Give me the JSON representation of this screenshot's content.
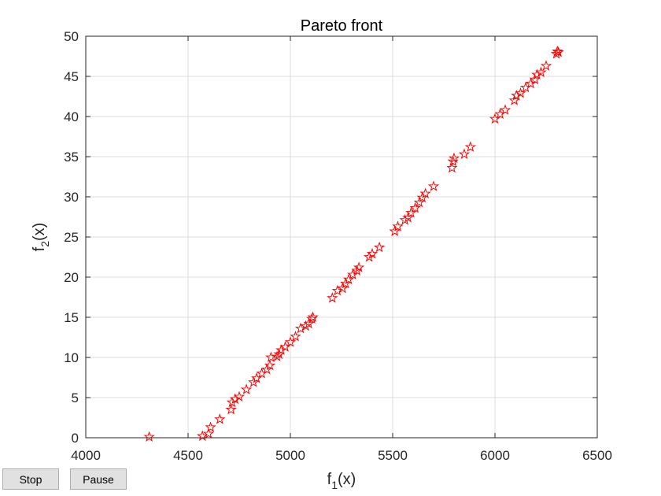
{
  "chart_data": {
    "type": "scatter",
    "title": "Pareto front",
    "xlabel": {
      "base": "f",
      "sub": "1",
      "rest": "(x)"
    },
    "ylabel": {
      "base": "f",
      "sub": "2",
      "rest": "(x)"
    },
    "xlim": [
      4000,
      6500
    ],
    "ylim": [
      0,
      50
    ],
    "xticks": [
      4000,
      4500,
      5000,
      5500,
      6000,
      6500
    ],
    "yticks": [
      0,
      5,
      10,
      15,
      20,
      25,
      30,
      35,
      40,
      45,
      50
    ],
    "grid": true,
    "marker": "pentagram",
    "marker_color": "#ff0000",
    "points": [
      [
        4310,
        0.1
      ],
      [
        4570,
        0.2
      ],
      [
        4600,
        0.5
      ],
      [
        4610,
        1.3
      ],
      [
        4655,
        2.3
      ],
      [
        4710,
        3.5
      ],
      [
        4715,
        4.4
      ],
      [
        4730,
        4.8
      ],
      [
        4750,
        5.1
      ],
      [
        4785,
        6.0
      ],
      [
        4820,
        6.9
      ],
      [
        4835,
        7.4
      ],
      [
        4860,
        8.0
      ],
      [
        4885,
        8.5
      ],
      [
        4900,
        9.0
      ],
      [
        4905,
        10.0
      ],
      [
        4935,
        10.1
      ],
      [
        4945,
        10.4
      ],
      [
        4955,
        10.9
      ],
      [
        4975,
        11.3
      ],
      [
        5000,
        11.9
      ],
      [
        5025,
        12.6
      ],
      [
        5050,
        13.6
      ],
      [
        5075,
        13.9
      ],
      [
        5090,
        14.2
      ],
      [
        5105,
        14.8
      ],
      [
        5110,
        15.0
      ],
      [
        5205,
        17.4
      ],
      [
        5230,
        18.3
      ],
      [
        5255,
        18.6
      ],
      [
        5270,
        19.2
      ],
      [
        5285,
        19.7
      ],
      [
        5305,
        20.3
      ],
      [
        5325,
        20.8
      ],
      [
        5335,
        21.2
      ],
      [
        5385,
        22.5
      ],
      [
        5400,
        22.9
      ],
      [
        5435,
        23.7
      ],
      [
        5510,
        25.7
      ],
      [
        5525,
        26.3
      ],
      [
        5560,
        27.1
      ],
      [
        5575,
        27.4
      ],
      [
        5590,
        28.0
      ],
      [
        5610,
        28.6
      ],
      [
        5630,
        29.3
      ],
      [
        5645,
        29.9
      ],
      [
        5660,
        30.4
      ],
      [
        5700,
        31.3
      ],
      [
        5790,
        33.6
      ],
      [
        5795,
        34.4
      ],
      [
        5800,
        34.8
      ],
      [
        5850,
        35.3
      ],
      [
        5880,
        36.2
      ],
      [
        6000,
        39.7
      ],
      [
        6025,
        40.3
      ],
      [
        6050,
        40.8
      ],
      [
        6095,
        42.0
      ],
      [
        6105,
        42.6
      ],
      [
        6125,
        42.9
      ],
      [
        6150,
        43.6
      ],
      [
        6175,
        44.1
      ],
      [
        6195,
        44.6
      ],
      [
        6205,
        45.2
      ],
      [
        6225,
        45.5
      ],
      [
        6250,
        46.3
      ],
      [
        6300,
        47.8
      ],
      [
        6305,
        48.1
      ],
      [
        6310,
        48.0
      ]
    ]
  },
  "buttons": {
    "stop_label": "Stop",
    "pause_label": "Pause"
  }
}
